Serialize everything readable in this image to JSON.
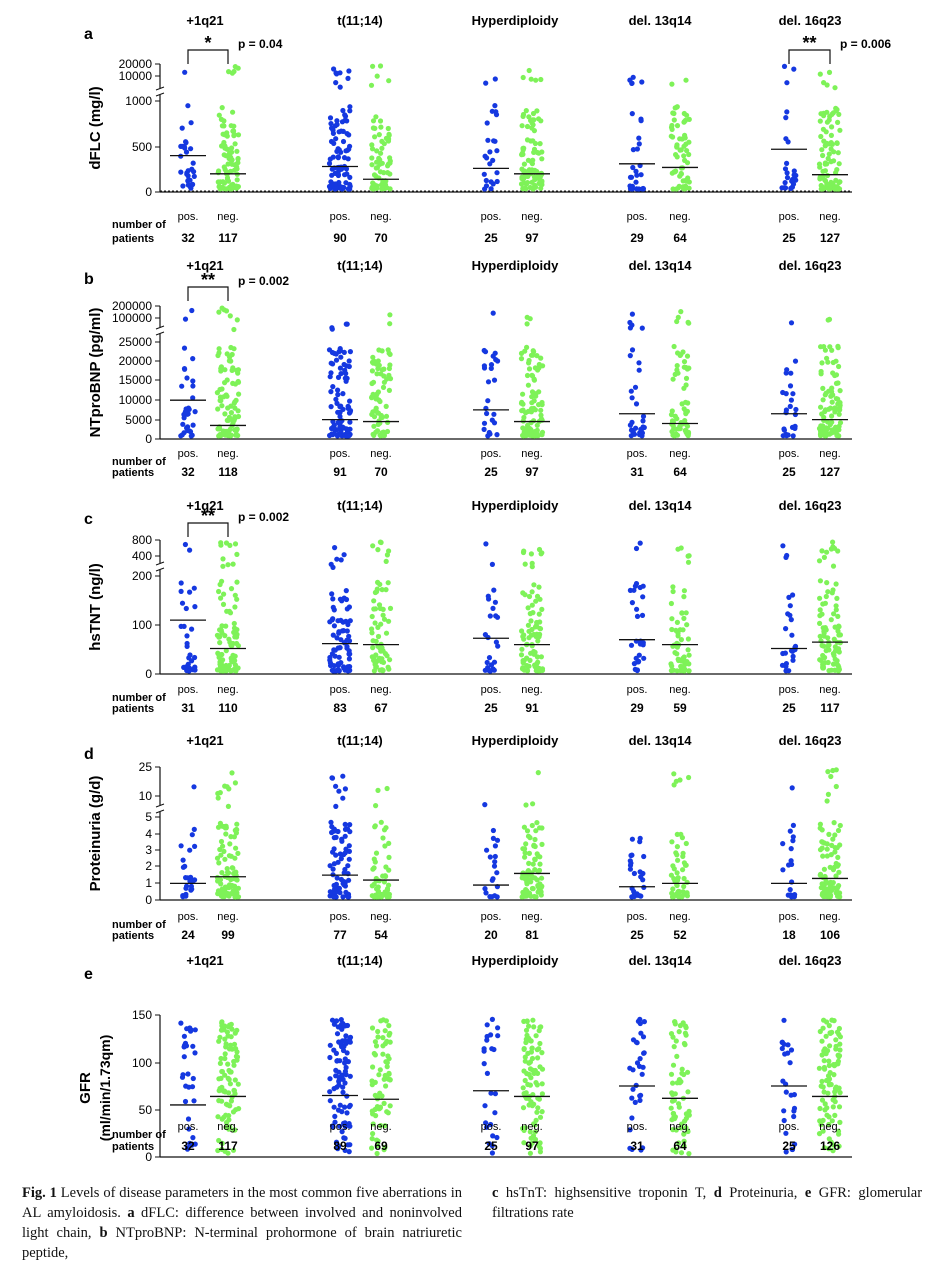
{
  "colors": {
    "positive": "#1538e0",
    "negative": "#7ef258",
    "axis": "#111111",
    "median": "#111111"
  },
  "groups": [
    "+1q21",
    "t(11;14)",
    "Hyperdiploidy",
    "del. 13q14",
    "del. 16q23"
  ],
  "count_labels": {
    "line1": "number of",
    "line2": "patients",
    "pos": "pos.",
    "neg": "neg."
  },
  "panels": [
    {
      "letter": "a",
      "ylabel": "dFLC (mg/l)",
      "upper_ticks": [
        "20000",
        "10000"
      ],
      "lower_ticks": [
        "1000",
        "500",
        "0"
      ],
      "dotted_zero": true,
      "significance": [
        {
          "group": 0,
          "stars": "*",
          "p": "p = 0.04"
        },
        {
          "group": 4,
          "stars": "**",
          "p": "p = 0.006"
        }
      ],
      "counts": [
        [
          "32",
          "117"
        ],
        [
          "90",
          "70"
        ],
        [
          "25",
          "97"
        ],
        [
          "29",
          "64"
        ],
        [
          "25",
          "127"
        ]
      ]
    },
    {
      "letter": "b",
      "ylabel": "NTproBNP (pg/ml)",
      "upper_ticks": [
        "200000",
        "100000"
      ],
      "lower_ticks": [
        "25000",
        "20000",
        "15000",
        "10000",
        "5000",
        "0"
      ],
      "dotted_zero": false,
      "significance": [
        {
          "group": 0,
          "stars": "**",
          "p": "p = 0.002"
        }
      ],
      "counts": [
        [
          "32",
          "118"
        ],
        [
          "91",
          "70"
        ],
        [
          "25",
          "97"
        ],
        [
          "31",
          "64"
        ],
        [
          "25",
          "127"
        ]
      ]
    },
    {
      "letter": "c",
      "ylabel": "hsTNT (ng/l)",
      "upper_ticks": [
        "800",
        "400"
      ],
      "lower_ticks": [
        "200",
        "100",
        "0"
      ],
      "dotted_zero": false,
      "significance": [
        {
          "group": 0,
          "stars": "**",
          "p": "p = 0.002"
        }
      ],
      "counts": [
        [
          "31",
          "110"
        ],
        [
          "83",
          "67"
        ],
        [
          "25",
          "91"
        ],
        [
          "29",
          "59"
        ],
        [
          "25",
          "117"
        ]
      ]
    },
    {
      "letter": "d",
      "ylabel": "Proteinuria (g/d)",
      "upper_ticks": [
        "25",
        "10"
      ],
      "lower_ticks": [
        "5",
        "4",
        "3",
        "2",
        "1",
        "0"
      ],
      "dotted_zero": false,
      "significance": [],
      "counts": [
        [
          "24",
          "99"
        ],
        [
          "77",
          "54"
        ],
        [
          "20",
          "81"
        ],
        [
          "25",
          "52"
        ],
        [
          "18",
          "106"
        ]
      ]
    },
    {
      "letter": "e",
      "ylabel": "GFR",
      "ylabel2": "(ml/min/1.73qm)",
      "upper_ticks": [],
      "lower_ticks": [
        "150",
        "100",
        "50",
        "0"
      ],
      "dotted_zero": false,
      "significance": [],
      "counts": [
        [
          "32",
          "117"
        ],
        [
          "89",
          "69"
        ],
        [
          "25",
          "97"
        ],
        [
          "31",
          "64"
        ],
        [
          "25",
          "126"
        ]
      ]
    }
  ],
  "chart_data": [
    {
      "type": "scatter",
      "panel": "a",
      "ylabel": "dFLC (mg/l)",
      "y_scale": "broken (0-1000 linear, 10000-20000 upper)",
      "series": [
        {
          "name": "pos.",
          "median": [
            400,
            280,
            260,
            310,
            470
          ]
        },
        {
          "name": "neg.",
          "median": [
            200,
            140,
            200,
            270,
            190
          ]
        }
      ]
    },
    {
      "type": "scatter",
      "panel": "b",
      "ylabel": "NTproBNP (pg/ml)",
      "y_scale": "broken (0-25000 linear, 100000-200000 upper)",
      "series": [
        {
          "name": "pos.",
          "median": [
            10000,
            5000,
            7500,
            6500,
            6500
          ]
        },
        {
          "name": "neg.",
          "median": [
            3500,
            4500,
            4500,
            4000,
            5000
          ]
        }
      ]
    },
    {
      "type": "scatter",
      "panel": "c",
      "ylabel": "hsTNT (ng/l)",
      "y_scale": "broken (0-200 linear, 400-800 upper)",
      "series": [
        {
          "name": "pos.",
          "median": [
            110,
            62,
            73,
            70,
            52
          ]
        },
        {
          "name": "neg.",
          "median": [
            52,
            60,
            60,
            60,
            65
          ]
        }
      ]
    },
    {
      "type": "scatter",
      "panel": "d",
      "ylabel": "Proteinuria (g/d)",
      "y_scale": "broken (0-5 linear, 10-25 upper)",
      "series": [
        {
          "name": "pos.",
          "median": [
            1.0,
            1.5,
            0.9,
            0.8,
            1.0
          ]
        },
        {
          "name": "neg.",
          "median": [
            1.4,
            1.2,
            1.6,
            1.0,
            1.3
          ]
        }
      ]
    },
    {
      "type": "scatter",
      "panel": "e",
      "ylabel": "GFR (ml/min/1.73qm)",
      "ylim": [
        0,
        150
      ],
      "series": [
        {
          "name": "pos.",
          "median": [
            55,
            65,
            70,
            75,
            75
          ]
        },
        {
          "name": "neg.",
          "median": [
            64,
            61,
            64,
            62,
            64
          ]
        }
      ]
    }
  ],
  "caption": {
    "label": "Fig. 1",
    "text_left": "Levels of disease parameters in the most common five aberrations in AL amyloidosis.",
    "a_letter": "a",
    "a_text": "dFLC: difference between involved and noninvolved light chain,",
    "b_letter": "b",
    "b_text": "NTproBNP: N-terminal prohormone of brain natriuretic peptide,",
    "c_letter": "c",
    "c_text": "hsTnT: highsensitive troponin T,",
    "d_letter": "d",
    "d_text": "Proteinuria,",
    "e_letter": "e",
    "e_text": "GFR: glomerular filtrations rate"
  }
}
